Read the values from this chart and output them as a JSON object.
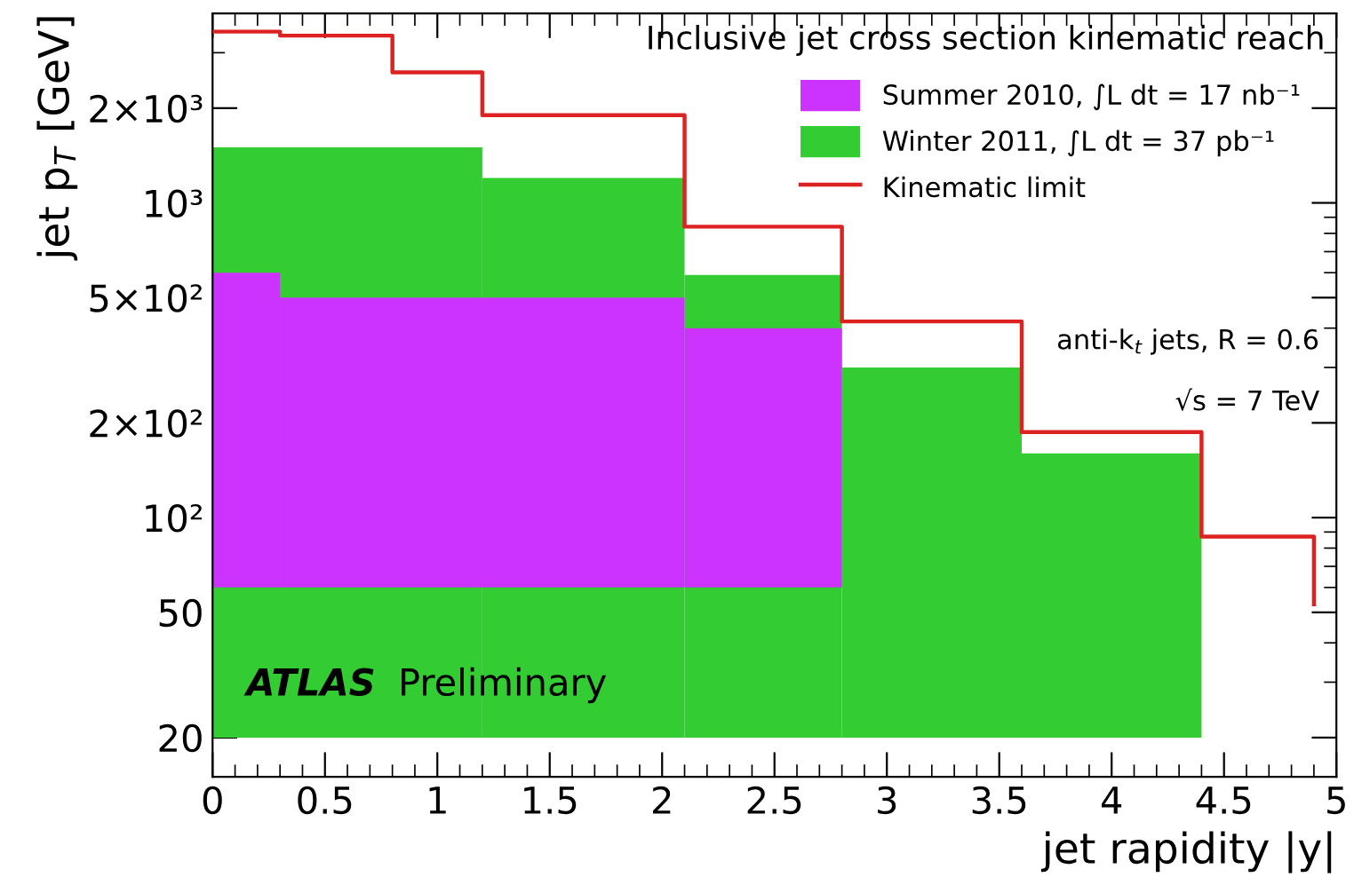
{
  "chart_data": {
    "type": "histogram",
    "xlabel": "jet rapidity |y|",
    "ylabel": "jet p$_{T}$ [GeV]",
    "series": [
      {
        "name": "Winter 2011, ∫L dt = 37 pb⁻¹",
        "color": "#33cc33",
        "bins": [
          0,
          1.2,
          2.1,
          2.8,
          3.6,
          4.4
        ],
        "base": [
          20,
          20,
          20,
          20,
          20
        ],
        "values": [
          1480,
          1180,
          570,
          280,
          140
        ]
      },
      {
        "name": "Summer 2010, ∫L dt = 17 nb⁻¹",
        "color": "#cc33ff",
        "bins": [
          0,
          0.3,
          2.1,
          2.8
        ],
        "base": [
          60,
          60,
          60
        ],
        "values": [
          540,
          440,
          340
        ]
      },
      {
        "name": "Kinematic limit",
        "type": "step",
        "color": "#dd2222",
        "x": [
          0,
          0.3,
          0.8,
          1.2,
          2.1,
          2.8,
          3.6,
          4.4,
          4.9
        ],
        "values": [
          3500,
          3400,
          2600,
          1900,
          840,
          420,
          187,
          87,
          53
        ]
      }
    ],
    "log": "y",
    "xlim": [
      0,
      5
    ],
    "ylim": [
      15,
      4000
    ],
    "xticks": [
      0,
      0.5,
      1,
      1.5,
      2,
      2.5,
      3,
      3.5,
      4,
      4.5,
      5
    ],
    "yticks": [
      20,
      50,
      {
        "value": 100,
        "label": "10²"
      },
      {
        "value": 200,
        "label": "2×10²"
      },
      {
        "value": 500,
        "label": "5×10²"
      },
      {
        "value": 1000,
        "label": "10³"
      },
      {
        "value": 2000,
        "label": "2×10³"
      }
    ],
    "legend": "top right",
    "grid": false,
    "annotations": [
      "Inclusive jet cross section kinematic reach",
      "anti-k$_{t}$ jets, R = 0.6",
      "√s = 7 TeV",
      "ATLAS Preliminary"
    ]
  }
}
